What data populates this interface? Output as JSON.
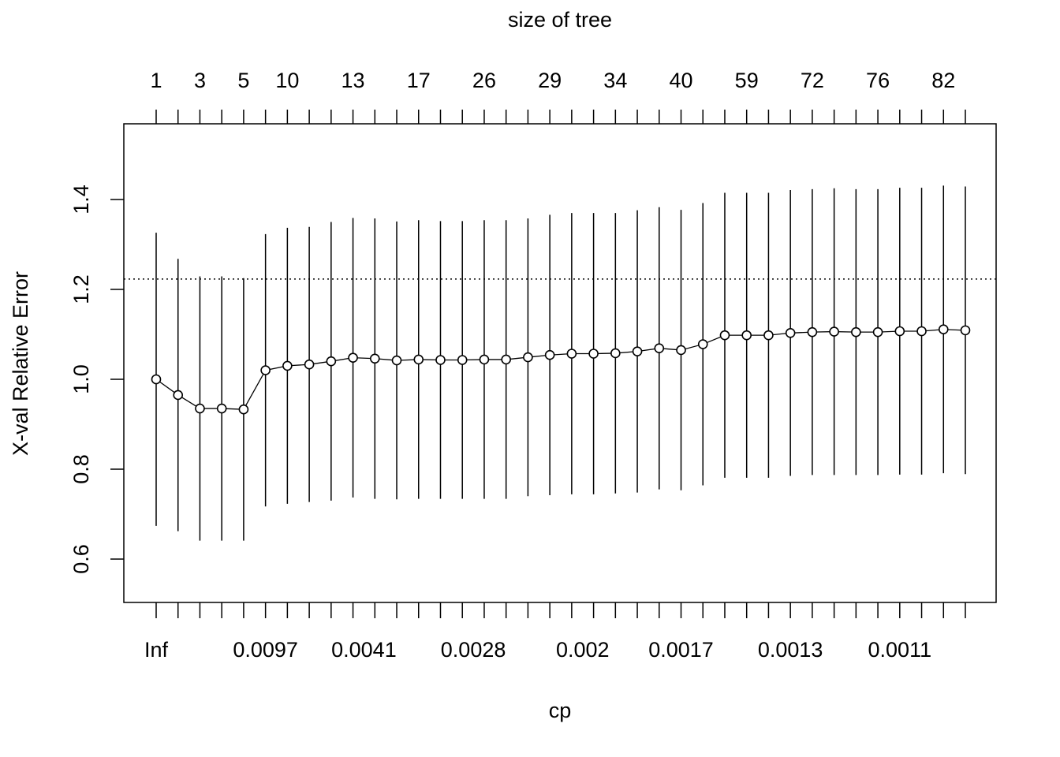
{
  "chart_data": {
    "type": "scatter",
    "xlabel": "cp",
    "ylabel": "X-val Relative Error",
    "top_axis_title": "size of tree",
    "ylim": [
      0.5,
      1.55
    ],
    "yticks": [
      0.6,
      0.8,
      1.0,
      1.2,
      1.4
    ],
    "ytick_labels": [
      "0.6",
      "0.8",
      "1.0",
      "1.2",
      "1.4"
    ],
    "grid": false,
    "reference_line": {
      "y": 1.223,
      "style": "dotted"
    },
    "top_tick_labels": [
      {
        "index": 1,
        "label": "1"
      },
      {
        "index": 3,
        "label": "3"
      },
      {
        "index": 5,
        "label": "5"
      },
      {
        "index": 7,
        "label": "10"
      },
      {
        "index": 10,
        "label": "13"
      },
      {
        "index": 13,
        "label": "17"
      },
      {
        "index": 16,
        "label": "26"
      },
      {
        "index": 19,
        "label": "29"
      },
      {
        "index": 22,
        "label": "34"
      },
      {
        "index": 25,
        "label": "40"
      },
      {
        "index": 28,
        "label": "59"
      },
      {
        "index": 31,
        "label": "72"
      },
      {
        "index": 34,
        "label": "76"
      },
      {
        "index": 37,
        "label": "82"
      }
    ],
    "bottom_tick_labels": [
      {
        "index": 1,
        "label": "Inf"
      },
      {
        "index": 6,
        "label": "0.0097"
      },
      {
        "index": 10.5,
        "label": "0.0041"
      },
      {
        "index": 15.5,
        "label": "0.0028"
      },
      {
        "index": 20.5,
        "label": "0.002"
      },
      {
        "index": 25,
        "label": "0.0017"
      },
      {
        "index": 30,
        "label": "0.0013"
      },
      {
        "index": 35,
        "label": "0.0011"
      }
    ],
    "series": [
      {
        "x": [
          1,
          2,
          3,
          4,
          5,
          6,
          7,
          8,
          9,
          10,
          11,
          12,
          13,
          14,
          15,
          16,
          17,
          18,
          19,
          20,
          21,
          22,
          23,
          24,
          25,
          26,
          27,
          28,
          29,
          30,
          31,
          32,
          33,
          34,
          35,
          36,
          37,
          38
        ],
        "y": [
          1.0,
          0.965,
          0.935,
          0.935,
          0.933,
          1.02,
          1.03,
          1.033,
          1.04,
          1.048,
          1.046,
          1.042,
          1.044,
          1.043,
          1.043,
          1.044,
          1.044,
          1.049,
          1.054,
          1.057,
          1.057,
          1.058,
          1.062,
          1.069,
          1.065,
          1.078,
          1.098,
          1.098,
          1.098,
          1.103,
          1.105,
          1.106,
          1.105,
          1.105,
          1.107,
          1.107,
          1.111,
          1.109
        ],
        "y_low": [
          0.674,
          0.662,
          0.641,
          0.641,
          0.641,
          0.717,
          0.723,
          0.727,
          0.73,
          0.737,
          0.734,
          0.733,
          0.734,
          0.734,
          0.734,
          0.734,
          0.734,
          0.74,
          0.742,
          0.744,
          0.744,
          0.746,
          0.748,
          0.755,
          0.753,
          0.764,
          0.781,
          0.781,
          0.781,
          0.785,
          0.787,
          0.787,
          0.787,
          0.787,
          0.788,
          0.788,
          0.791,
          0.789
        ],
        "y_high": [
          1.326,
          1.268,
          1.229,
          1.229,
          1.225,
          1.323,
          1.337,
          1.339,
          1.35,
          1.359,
          1.358,
          1.351,
          1.354,
          1.352,
          1.352,
          1.354,
          1.354,
          1.358,
          1.366,
          1.37,
          1.37,
          1.37,
          1.376,
          1.383,
          1.377,
          1.392,
          1.415,
          1.415,
          1.415,
          1.421,
          1.423,
          1.425,
          1.423,
          1.423,
          1.426,
          1.426,
          1.431,
          1.429
        ]
      }
    ]
  }
}
